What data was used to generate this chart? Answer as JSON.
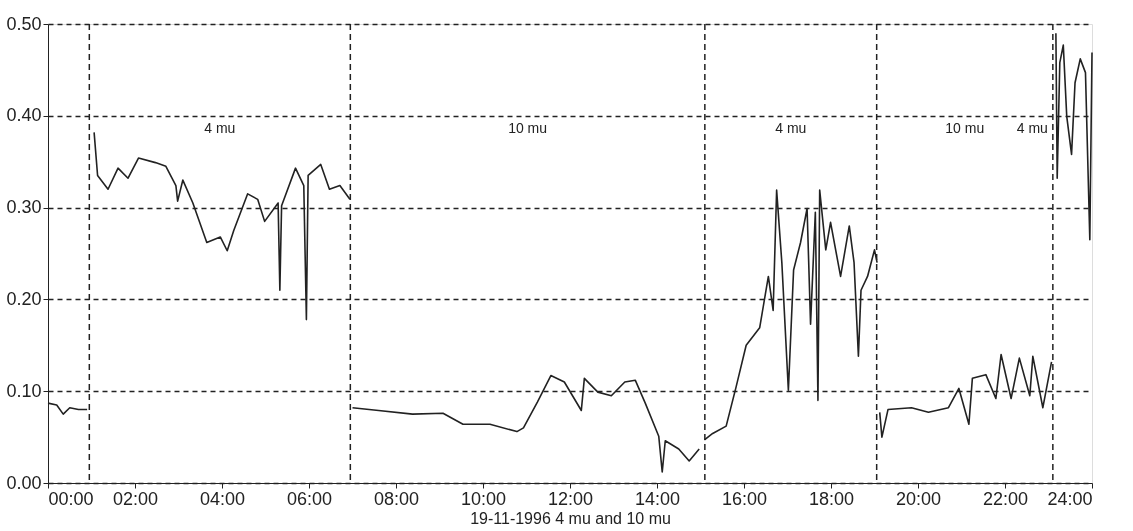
{
  "chart_data": {
    "type": "line",
    "xlabel": "19-11-1996  4 mu and 10 mu",
    "series": [
      {
        "color": "#222222",
        "x": [
          0,
          0.2,
          0.35,
          0.5,
          0.7,
          0.9,
          0.97,
          1.06,
          1.14,
          1.38,
          1.61,
          1.84,
          2.08,
          2.47,
          2.71,
          2.94,
          2.98,
          3.1,
          3.33,
          3.65,
          3.96,
          4.12,
          4.27,
          4.59,
          4.82,
          4.98,
          5.29,
          5.33,
          5.37,
          5.69,
          5.88,
          5.94,
          5.98,
          6.27,
          6.47,
          6.71,
          6.94,
          6.97,
          7.0,
          7.6,
          8.38,
          9.08,
          9.54,
          10.16,
          10.78,
          10.93,
          11.25,
          11.56,
          11.87,
          12.26,
          12.33,
          12.64,
          12.95,
          13.26,
          13.5,
          13.73,
          14.04,
          14.12,
          14.19,
          14.5,
          14.74,
          14.97,
          15.04,
          15.09,
          15.28,
          15.59,
          15.82,
          16.05,
          16.36,
          16.56,
          16.67,
          16.75,
          16.87,
          17.02,
          17.14,
          17.3,
          17.45,
          17.53,
          17.64,
          17.7,
          17.74,
          17.88,
          17.99,
          18.22,
          18.42,
          18.53,
          18.63,
          18.69,
          18.84,
          19.0,
          19.06,
          19.09,
          19.12,
          19.17,
          19.31,
          19.85,
          20.24,
          20.7,
          20.94,
          21.17,
          21.25,
          21.56,
          21.79,
          21.91,
          22.14,
          22.33,
          22.57,
          22.64,
          22.87,
          23.07,
          23.12,
          23.17,
          23.2,
          23.26,
          23.34,
          23.42,
          23.53,
          23.61,
          23.73,
          23.85,
          23.95,
          24.0
        ],
        "values": [
          0.087,
          0.085,
          0.075,
          0.082,
          0.08,
          0.08,
          null,
          0.382,
          0.335,
          0.32,
          0.343,
          0.332,
          0.354,
          0.349,
          0.345,
          0.324,
          0.307,
          0.33,
          0.305,
          0.262,
          0.268,
          0.253,
          0.275,
          0.315,
          0.309,
          0.285,
          0.305,
          0.21,
          0.302,
          0.343,
          0.324,
          0.178,
          0.335,
          0.347,
          0.32,
          0.324,
          0.309,
          null,
          0.082,
          0.079,
          0.075,
          0.076,
          0.064,
          0.064,
          0.056,
          0.06,
          0.088,
          0.117,
          0.11,
          0.079,
          0.114,
          0.099,
          0.095,
          0.11,
          0.112,
          0.087,
          0.051,
          0.012,
          0.046,
          0.037,
          0.024,
          0.037,
          null,
          0.047,
          0.054,
          0.062,
          0.105,
          0.15,
          0.169,
          0.225,
          0.188,
          0.319,
          0.24,
          0.101,
          0.232,
          0.262,
          0.299,
          0.173,
          0.295,
          0.09,
          0.319,
          0.254,
          0.284,
          0.225,
          0.28,
          0.24,
          0.138,
          0.21,
          0.225,
          0.254,
          0.24,
          null,
          0.077,
          0.05,
          0.08,
          0.082,
          0.077,
          0.082,
          0.103,
          0.064,
          0.114,
          0.118,
          0.092,
          0.14,
          0.092,
          0.136,
          0.095,
          0.138,
          0.082,
          0.132,
          null,
          0.49,
          0.332,
          0.458,
          0.477,
          0.399,
          0.358,
          0.436,
          0.462,
          0.447,
          0.265,
          0.469
        ]
      }
    ],
    "xlim": [
      0,
      24
    ],
    "xticks": [
      {
        "value": 0,
        "label": "00:00"
      },
      {
        "value": 2,
        "label": "02:00"
      },
      {
        "value": 4,
        "label": "04:00"
      },
      {
        "value": 6,
        "label": "06:00"
      },
      {
        "value": 8,
        "label": "08:00"
      },
      {
        "value": 10,
        "label": "10:00"
      },
      {
        "value": 12,
        "label": "12:00"
      },
      {
        "value": 14,
        "label": "14:00"
      },
      {
        "value": 16,
        "label": "16:00"
      },
      {
        "value": 18,
        "label": "18:00"
      },
      {
        "value": 20,
        "label": "20:00"
      },
      {
        "value": 22,
        "label": "22:00"
      },
      {
        "value": 24,
        "label": "24:00"
      }
    ],
    "ylim": [
      0,
      0.5
    ],
    "yticks": [
      {
        "value": 0,
        "label": "0.00"
      },
      {
        "value": 0.1,
        "label": "0.10"
      },
      {
        "value": 0.2,
        "label": "0.20"
      },
      {
        "value": 0.3,
        "label": "0.30"
      },
      {
        "value": 0.4,
        "label": "0.40"
      },
      {
        "value": 0.5,
        "label": "0.50"
      }
    ],
    "grid": "y",
    "line_style": "solid",
    "marker": "none",
    "ref_lines": [
      {
        "axis": "x",
        "value": 0.95,
        "color": "#222222",
        "line_style": "dashed"
      },
      {
        "axis": "x",
        "value": 6.95,
        "color": "#222222",
        "line_style": "dashed"
      },
      {
        "axis": "x",
        "value": 15.1,
        "color": "#222222",
        "line_style": "dashed"
      },
      {
        "axis": "x",
        "value": 19.05,
        "color": "#222222",
        "line_style": "dashed"
      },
      {
        "axis": "x",
        "value": 23.1,
        "color": "#222222",
        "line_style": "dashed"
      }
    ],
    "annotations": [
      "4 mu",
      "10 mu",
      "4 mu",
      "10 mu",
      "4 mu"
    ]
  }
}
